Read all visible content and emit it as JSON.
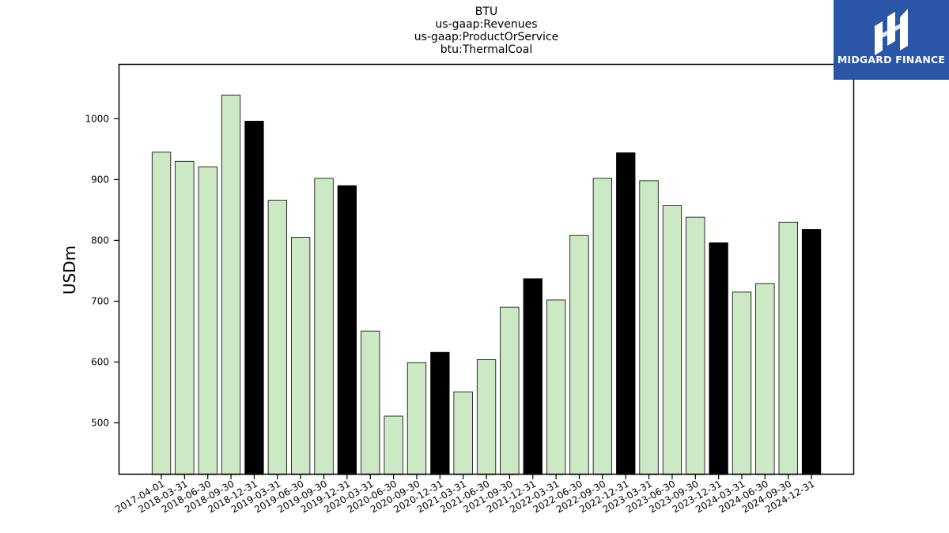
{
  "header": {
    "title_lines": [
      "BTU",
      "us-gaap:Revenues",
      "us-gaap:ProductOrService",
      "btu:ThermalCoal"
    ]
  },
  "logo": {
    "text": "MIDGARD FINANCE",
    "icon": "midgard-logo-icon",
    "background": "#2b55a6"
  },
  "colors": {
    "normal_bar": "#cce8c4",
    "highlight_bar": "#000000",
    "bar_edge": "#000000"
  },
  "chart_data": {
    "type": "bar",
    "ylabel": "USDm",
    "xlabel": "",
    "ylim": [
      415,
      1090
    ],
    "yticks": [
      500,
      600,
      700,
      800,
      900,
      1000
    ],
    "grid": false,
    "categories": [
      "2017-04-01",
      "2018-03-31",
      "2018-06-30",
      "2018-09-30",
      "2018-12-31",
      "2019-03-31",
      "2019-06-30",
      "2019-09-30",
      "2019-12-31",
      "2020-03-31",
      "2020-06-30",
      "2020-09-30",
      "2020-12-31",
      "2021-03-31",
      "2021-06-30",
      "2021-09-30",
      "2021-12-31",
      "2022-03-31",
      "2022-06-30",
      "2022-09-30",
      "2022-12-31",
      "2023-03-31",
      "2023-06-30",
      "2023-09-30",
      "2023-12-31",
      "2024-03-31",
      "2024-06-30",
      "2024-09-30",
      "2024-12-31"
    ],
    "values": [
      945,
      930,
      921,
      1039,
      996,
      866,
      805,
      902,
      890,
      651,
      511,
      599,
      616,
      551,
      604,
      690,
      737,
      702,
      808,
      902,
      944,
      898,
      857,
      838,
      796,
      715,
      729,
      830,
      818
    ],
    "highlighted": [
      false,
      false,
      false,
      false,
      true,
      false,
      false,
      false,
      true,
      false,
      false,
      false,
      true,
      false,
      false,
      false,
      true,
      false,
      false,
      false,
      true,
      false,
      false,
      false,
      true,
      false,
      false,
      false,
      true
    ]
  }
}
